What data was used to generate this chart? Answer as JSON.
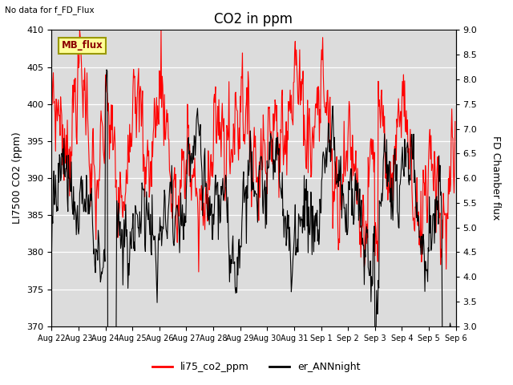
{
  "title": "CO2 in ppm",
  "top_left_text": "No data for f_FD_Flux",
  "legend_box_text": "MB_flux",
  "ylabel_left": "LI7500 CO2 (ppm)",
  "ylabel_right": "FD Chamber flux",
  "ylim_left": [
    370,
    410
  ],
  "ylim_right": [
    3.0,
    9.0
  ],
  "yticks_left": [
    370,
    375,
    380,
    385,
    390,
    395,
    400,
    405,
    410
  ],
  "yticks_right": [
    3.0,
    3.5,
    4.0,
    4.5,
    5.0,
    5.5,
    6.0,
    6.5,
    7.0,
    7.5,
    8.0,
    8.5,
    9.0
  ],
  "xtick_labels": [
    "Aug 22",
    "Aug 23",
    "Aug 24",
    "Aug 25",
    "Aug 26",
    "Aug 27",
    "Aug 28",
    "Aug 29",
    "Aug 30",
    "Aug 31",
    "Sep 1",
    "Sep 2",
    "Sep 3",
    "Sep 4",
    "Sep 5",
    "Sep 6"
  ],
  "line1_color": "#FF0000",
  "line1_label": "li75_co2_ppm",
  "line2_color": "#000000",
  "line2_label": "er_ANNnight",
  "background_color": "#DCDCDC",
  "legend_box_color": "#FFFF99",
  "legend_box_edge": "#999900",
  "title_fontsize": 12,
  "label_fontsize": 9,
  "tick_fontsize": 8
}
